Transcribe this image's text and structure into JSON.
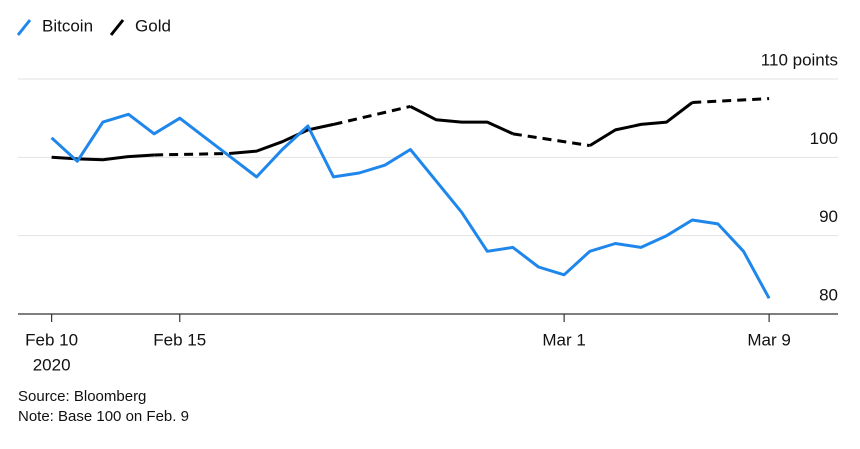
{
  "chart_data": {
    "type": "line",
    "legend": "top-left",
    "grid": true,
    "x": [
      "2020-02-10",
      "2020-02-11",
      "2020-02-12",
      "2020-02-13",
      "2020-02-14",
      "2020-02-15",
      "2020-02-16",
      "2020-02-17",
      "2020-02-18",
      "2020-02-19",
      "2020-02-20",
      "2020-02-21",
      "2020-02-22",
      "2020-02-23",
      "2020-02-24",
      "2020-02-25",
      "2020-02-26",
      "2020-02-27",
      "2020-02-28",
      "2020-02-29",
      "2020-03-01",
      "2020-03-02",
      "2020-03-03",
      "2020-03-04",
      "2020-03-05",
      "2020-03-06",
      "2020-03-07",
      "2020-03-08",
      "2020-03-09"
    ],
    "series": [
      {
        "name": "Bitcoin",
        "color": "#1f87ec",
        "values": [
          102.5,
          99.5,
          104.5,
          105.5,
          103,
          105,
          102.5,
          100,
          97.5,
          101,
          104,
          97.5,
          98,
          99,
          101,
          97,
          93,
          88,
          88.5,
          86,
          85,
          88,
          89,
          88.5,
          90,
          92,
          91.5,
          88,
          82
        ]
      },
      {
        "name": "Gold",
        "color": "#000000",
        "dashed_gaps": true,
        "values": [
          100,
          99.8,
          99.7,
          100.1,
          100.3,
          null,
          null,
          100.5,
          100.8,
          102,
          103.5,
          104.2,
          null,
          null,
          106.5,
          104.8,
          104.5,
          104.5,
          103,
          null,
          null,
          101.5,
          103.5,
          104.2,
          104.5,
          107,
          null,
          null,
          107.5
        ]
      }
    ],
    "xlim": [
      "2020-02-09",
      "2020-03-12"
    ],
    "xticks": [
      {
        "value": "2020-02-10",
        "label": "Feb 10"
      },
      {
        "value": "2020-02-15",
        "label": "Feb 15"
      },
      {
        "value": "2020-03-01",
        "label": "Mar 1"
      },
      {
        "value": "2020-03-09",
        "label": "Mar 9"
      }
    ],
    "x_year_label": "2020",
    "ylim": [
      80,
      110
    ],
    "yticks": [
      80,
      90,
      100,
      {
        "value": 110,
        "label": "110 points"
      }
    ],
    "source": "Source: Bloomberg",
    "note": "Note: Base 100 on Feb. 9"
  }
}
